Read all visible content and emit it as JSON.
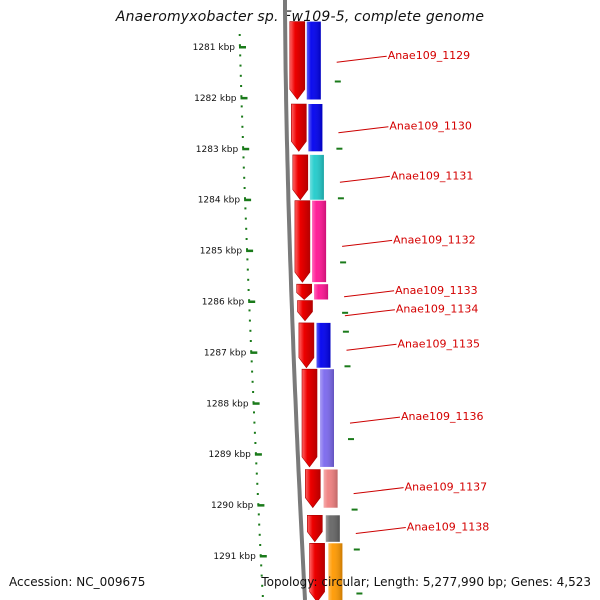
{
  "title": "Anaeromyxobacter sp. Fw109-5, complete genome",
  "accession": "Accession: NC_009675",
  "topology": "Topology: circular; Length: 5,277,990 bp; Genes: 4,523",
  "scale": {
    "unit": "kbp",
    "ticks": [
      "1281 kbp",
      "1282 kbp",
      "1283 kbp",
      "1284 kbp",
      "1285 kbp",
      "1286 kbp",
      "1287 kbp",
      "1288 kbp",
      "1289 kbp",
      "1290 kbp",
      "1291 kbp"
    ],
    "tick_color": "#1a7a1a"
  },
  "colors": {
    "backbone": "#7a7a7a",
    "forward_strand": "#ee0000",
    "label": "#d40000",
    "label_line": "#cc0000"
  },
  "genes": [
    {
      "label": "Anae109_1129",
      "start_kbp": 1280.5,
      "end_kbp": 1282.03,
      "color": "#0000ee"
    },
    {
      "label": "Anae109_1130",
      "start_kbp": 1282.12,
      "end_kbp": 1283.05,
      "color": "#0000ee"
    },
    {
      "label": "Anae109_1131",
      "start_kbp": 1283.12,
      "end_kbp": 1284.0,
      "color": "#22cccc"
    },
    {
      "label": "Anae109_1132",
      "start_kbp": 1284.02,
      "end_kbp": 1285.62,
      "color": "#ff1493"
    },
    {
      "label": "Anae109_1133",
      "start_kbp": 1285.66,
      "end_kbp": 1285.96,
      "color": "#ff1493"
    },
    {
      "label": "Anae109_1134",
      "start_kbp": 1285.98,
      "end_kbp": 1286.38,
      "color": null
    },
    {
      "label": "Anae109_1135",
      "start_kbp": 1286.42,
      "end_kbp": 1287.3,
      "color": "#0000ee"
    },
    {
      "label": "Anae109_1136",
      "start_kbp": 1287.33,
      "end_kbp": 1289.25,
      "color": "#7b68ee"
    },
    {
      "label": "Anae109_1137",
      "start_kbp": 1289.3,
      "end_kbp": 1290.05,
      "color": "#f08080"
    },
    {
      "label": "Anae109_1138",
      "start_kbp": 1290.2,
      "end_kbp": 1290.72,
      "color": "#666666"
    },
    {
      "label": "",
      "start_kbp": 1290.75,
      "end_kbp": 1291.9,
      "color": "#ff9900"
    }
  ]
}
